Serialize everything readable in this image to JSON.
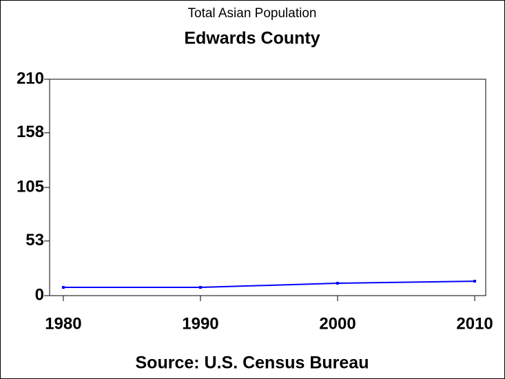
{
  "chart_data": {
    "type": "line",
    "title": "Total Asian Population",
    "subtitle": "Edwards County",
    "footnote": "Source: U.S. Census Bureau",
    "x": [
      1980,
      1990,
      2000,
      2010
    ],
    "series": [
      {
        "color": "#0000ff",
        "values": [
          8,
          8,
          12,
          14
        ]
      }
    ],
    "xlim": [
      1979,
      2010.8
    ],
    "xticks": [
      1980,
      1990,
      2000,
      2010
    ],
    "ylim": [
      0,
      210
    ],
    "yticks": [
      0,
      53,
      105,
      158,
      210
    ]
  }
}
